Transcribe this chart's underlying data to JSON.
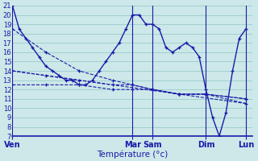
{
  "xlabel": "Température (°c)",
  "background_color": "#cce8e8",
  "grid_color": "#99cccc",
  "line_color": "#1a1aaa",
  "ylim": [
    7,
    21
  ],
  "yticks": [
    7,
    8,
    9,
    10,
    11,
    12,
    13,
    14,
    15,
    16,
    17,
    18,
    19,
    20,
    21
  ],
  "xlim": [
    0,
    36
  ],
  "day_labels": [
    "Ven",
    "Mar",
    "Sam",
    "Dim",
    "Lun"
  ],
  "day_positions": [
    0,
    18,
    21,
    29,
    35
  ],
  "series1_x": [
    0,
    1,
    2,
    3,
    4,
    5,
    6,
    7,
    8,
    9,
    10,
    11,
    12,
    13,
    14,
    15,
    16,
    17,
    18,
    19,
    20,
    21,
    22,
    23,
    24,
    25,
    26,
    27,
    28,
    29,
    30,
    31,
    32,
    33,
    34,
    35
  ],
  "series1_y": [
    21,
    18.5,
    17.5,
    16.5,
    15.5,
    14.5,
    14,
    13.5,
    13,
    13,
    12.5,
    12.5,
    13,
    14,
    15,
    16,
    17,
    18.5,
    20,
    20,
    19,
    19,
    18.5,
    16.5,
    16,
    16.5,
    17,
    16.5,
    15.5,
    12,
    9,
    7,
    9.5,
    14,
    17.5,
    18.5
  ],
  "series2_x": [
    0,
    5,
    10,
    15,
    18,
    21,
    25,
    29,
    35
  ],
  "series2_y": [
    18.5,
    16,
    14,
    13,
    12.5,
    12,
    11.5,
    11.5,
    10.5
  ],
  "series3_x": [
    0,
    5,
    10,
    15,
    18,
    21,
    25,
    29,
    35
  ],
  "series3_y": [
    14,
    13.5,
    13,
    12.5,
    12.5,
    12,
    11.5,
    11.5,
    11
  ],
  "series4_x": [
    0,
    5,
    10,
    15,
    18,
    21,
    25,
    29,
    35
  ],
  "series4_y": [
    12.5,
    12.5,
    12.5,
    12,
    12,
    12,
    11.5,
    11.5,
    11
  ],
  "series5_x": [
    0,
    35
  ],
  "series5_y": [
    14,
    10.5
  ]
}
